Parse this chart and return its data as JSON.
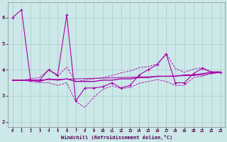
{
  "xlabel": "Windchill (Refroidissement éolien,°C)",
  "bg_color": "#cce8e8",
  "grid_color": "#aacccc",
  "line_color": "#aa00aa",
  "xlim": [
    -0.5,
    23.5
  ],
  "ylim": [
    1.8,
    6.6
  ],
  "xticks": [
    0,
    1,
    2,
    3,
    4,
    5,
    6,
    7,
    8,
    9,
    10,
    11,
    12,
    13,
    14,
    15,
    16,
    17,
    18,
    19,
    20,
    21,
    22,
    23
  ],
  "yticks": [
    2,
    3,
    4,
    5,
    6
  ],
  "hours": [
    0,
    1,
    2,
    3,
    4,
    5,
    6,
    7,
    8,
    9,
    10,
    11,
    12,
    13,
    14,
    15,
    16,
    17,
    18,
    19,
    20,
    21,
    22,
    23
  ],
  "line_main": [
    6.0,
    6.3,
    3.6,
    3.6,
    4.0,
    3.8,
    6.1,
    2.8,
    3.3,
    3.3,
    3.35,
    3.5,
    3.3,
    3.4,
    3.8,
    4.0,
    4.2,
    4.6,
    3.5,
    3.5,
    3.85,
    4.05,
    3.9,
    3.9
  ],
  "line_avg": [
    3.6,
    3.6,
    3.6,
    3.55,
    3.65,
    3.6,
    3.65,
    3.55,
    3.55,
    3.55,
    3.6,
    3.6,
    3.65,
    3.65,
    3.7,
    3.7,
    3.75,
    3.75,
    3.75,
    3.8,
    3.8,
    3.85,
    3.9,
    3.9
  ],
  "line_trend": [
    3.58,
    3.59,
    3.6,
    3.61,
    3.62,
    3.63,
    3.64,
    3.65,
    3.66,
    3.67,
    3.68,
    3.69,
    3.7,
    3.71,
    3.72,
    3.73,
    3.74,
    3.75,
    3.76,
    3.77,
    3.78,
    3.8,
    3.85,
    3.9
  ],
  "env_upper": [
    3.6,
    3.6,
    3.65,
    3.7,
    4.0,
    3.75,
    4.1,
    3.55,
    3.6,
    3.65,
    3.7,
    3.78,
    3.88,
    3.95,
    4.08,
    4.12,
    4.22,
    4.62,
    4.05,
    3.9,
    4.02,
    4.08,
    3.93,
    3.93
  ],
  "env_lower": [
    3.6,
    3.6,
    3.55,
    3.5,
    3.5,
    3.4,
    3.5,
    2.78,
    2.55,
    2.95,
    3.25,
    3.38,
    3.28,
    3.32,
    3.48,
    3.55,
    3.62,
    3.55,
    3.4,
    3.4,
    3.7,
    3.75,
    3.88,
    3.88
  ]
}
